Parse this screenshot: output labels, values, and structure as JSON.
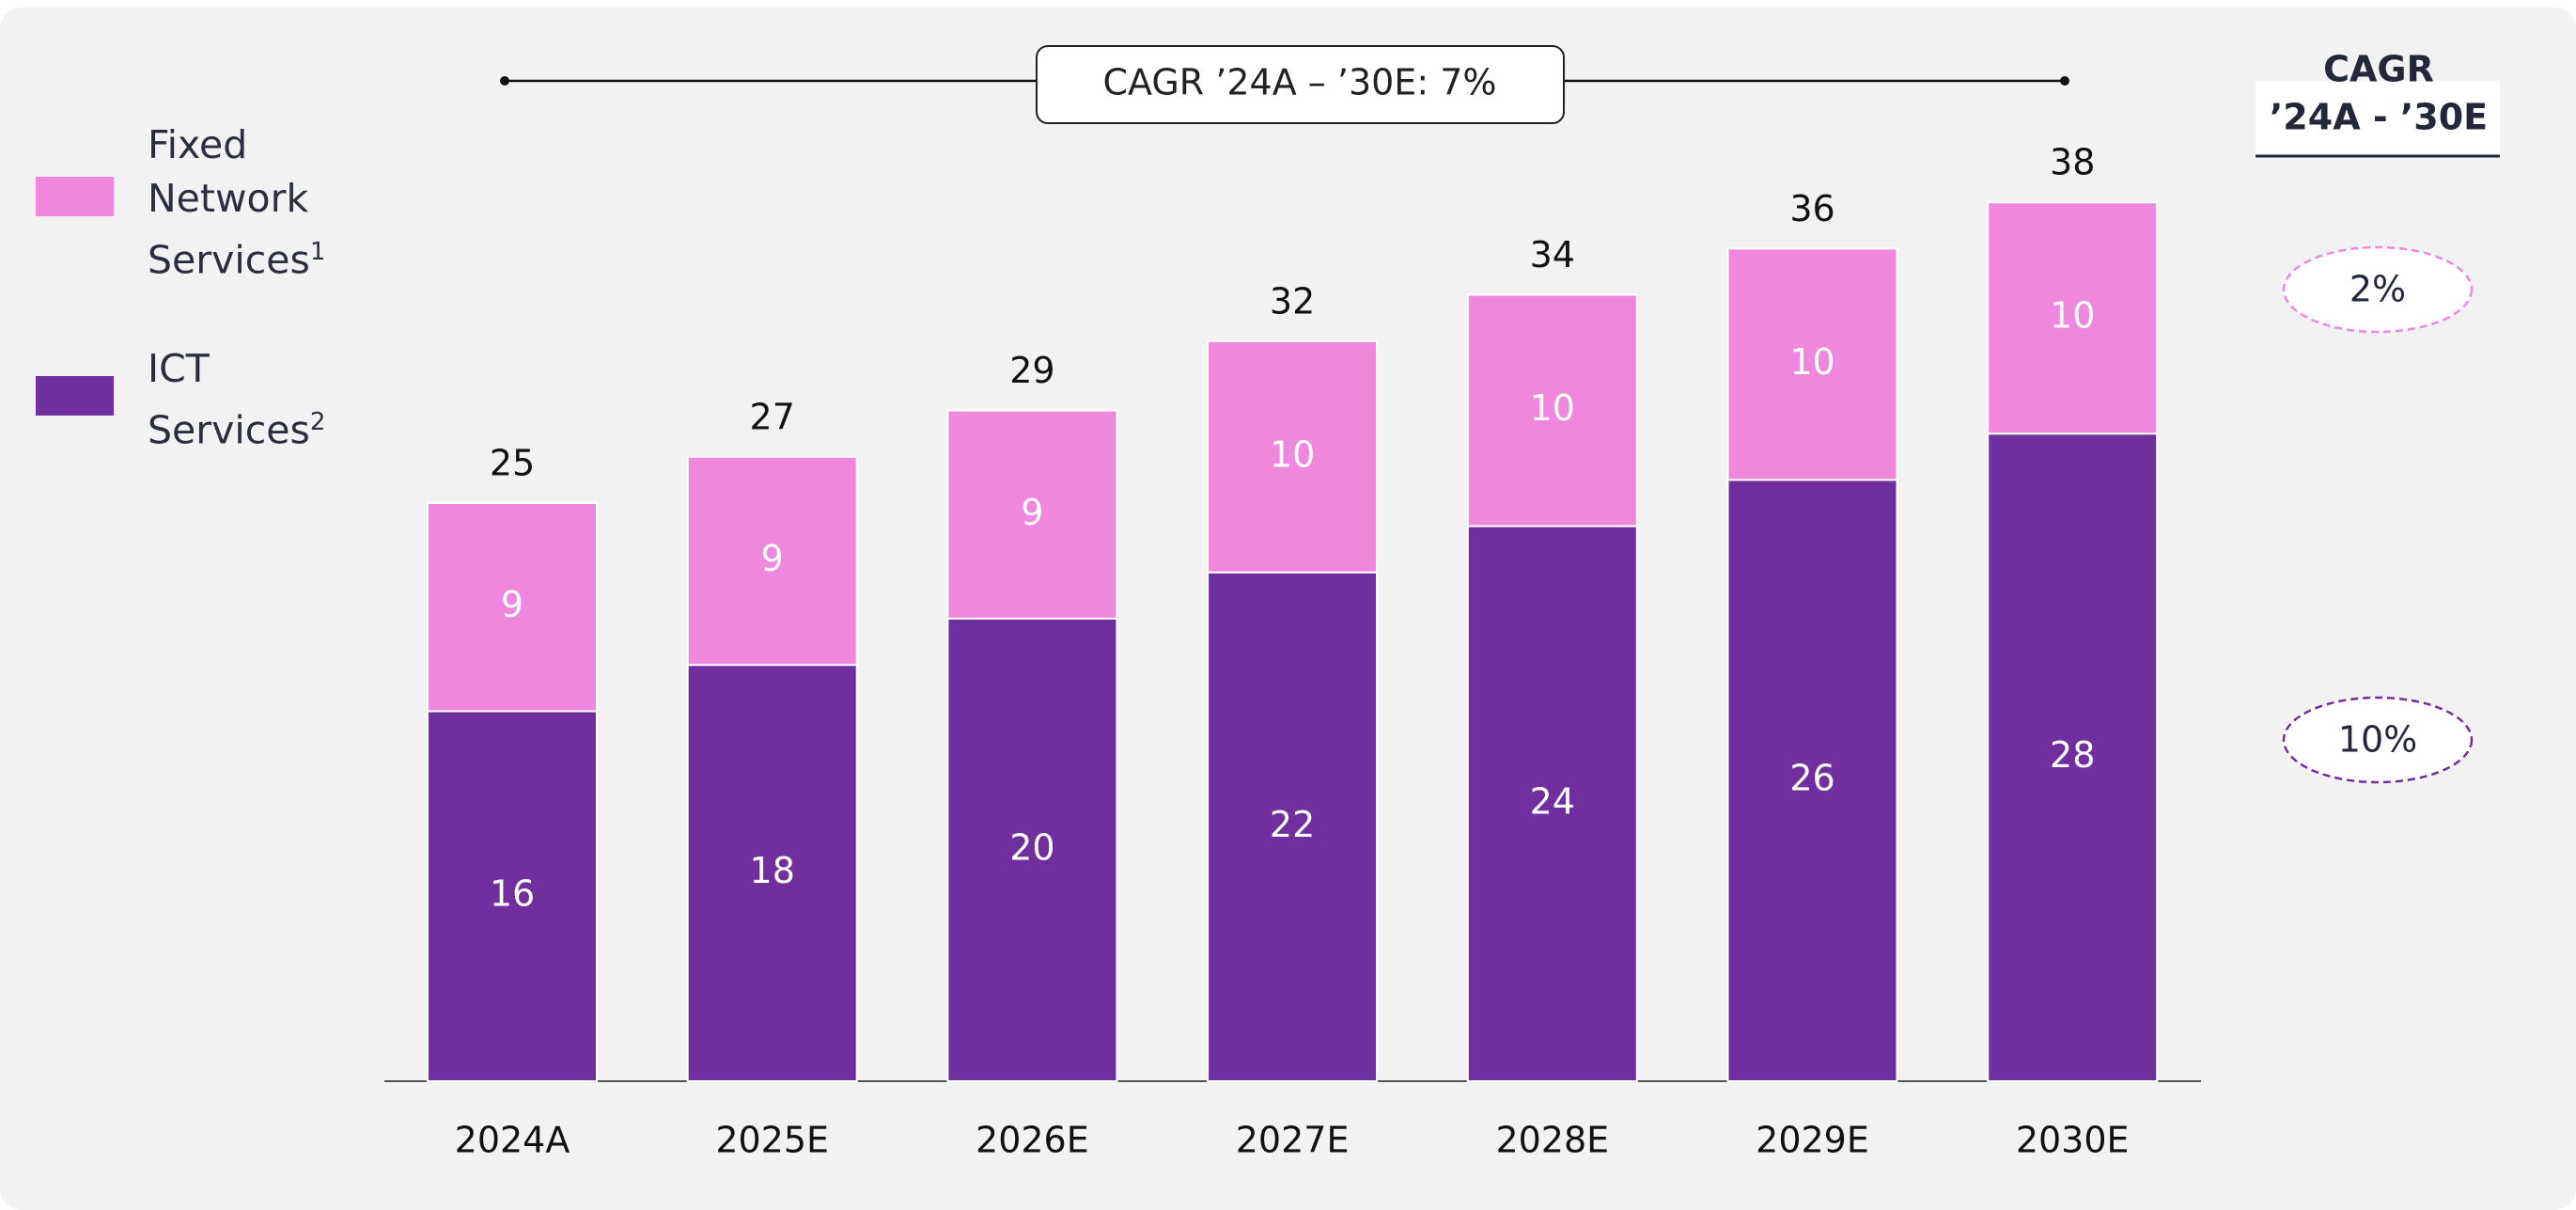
{
  "chart_data": {
    "type": "stacked_bar",
    "categories": [
      "2024A",
      "2025E",
      "2026E",
      "2027E",
      "2028E",
      "2029E",
      "2030E"
    ],
    "series": [
      {
        "name": "ICT Services",
        "footnote": "2",
        "color": "#6f2f9e",
        "cagr": "10%",
        "values": [
          16,
          18,
          20,
          22,
          24,
          26,
          28
        ]
      },
      {
        "name": "Fixed Network Services",
        "footnote": "1",
        "color": "#ef87dc",
        "cagr": "2%",
        "values": [
          9,
          9,
          9,
          10,
          10,
          10,
          10
        ]
      }
    ],
    "totals": [
      25,
      27,
      29,
      32,
      34,
      36,
      38
    ],
    "annotation": "CAGR ’24A – ’30E: 7%",
    "cagr_header": [
      "CAGR",
      "’24A - ’30E"
    ],
    "ylim": [
      0,
      40
    ]
  }
}
